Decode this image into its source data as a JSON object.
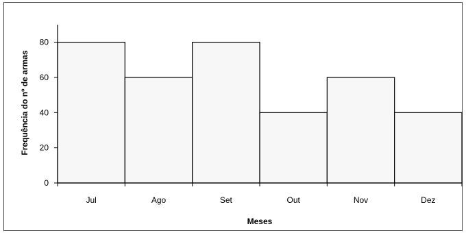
{
  "chart_data": {
    "type": "bar",
    "title": "",
    "xlabel": "Meses",
    "ylabel": "Frequência do nº de armas",
    "categories": [
      "Jul",
      "Ago",
      "Set",
      "Out",
      "Nov",
      "Dez"
    ],
    "values": [
      80,
      60,
      80,
      40,
      60,
      40
    ],
    "ylim": [
      0,
      90
    ],
    "yticks": [
      "0",
      "20",
      "40",
      "60",
      "80"
    ],
    "grid": false,
    "legend": "none",
    "colors": {
      "bar_fill": "#f7f7f7",
      "bar_stroke": "#000000",
      "axis": "#000000",
      "frame": "#4a4a4a"
    }
  }
}
